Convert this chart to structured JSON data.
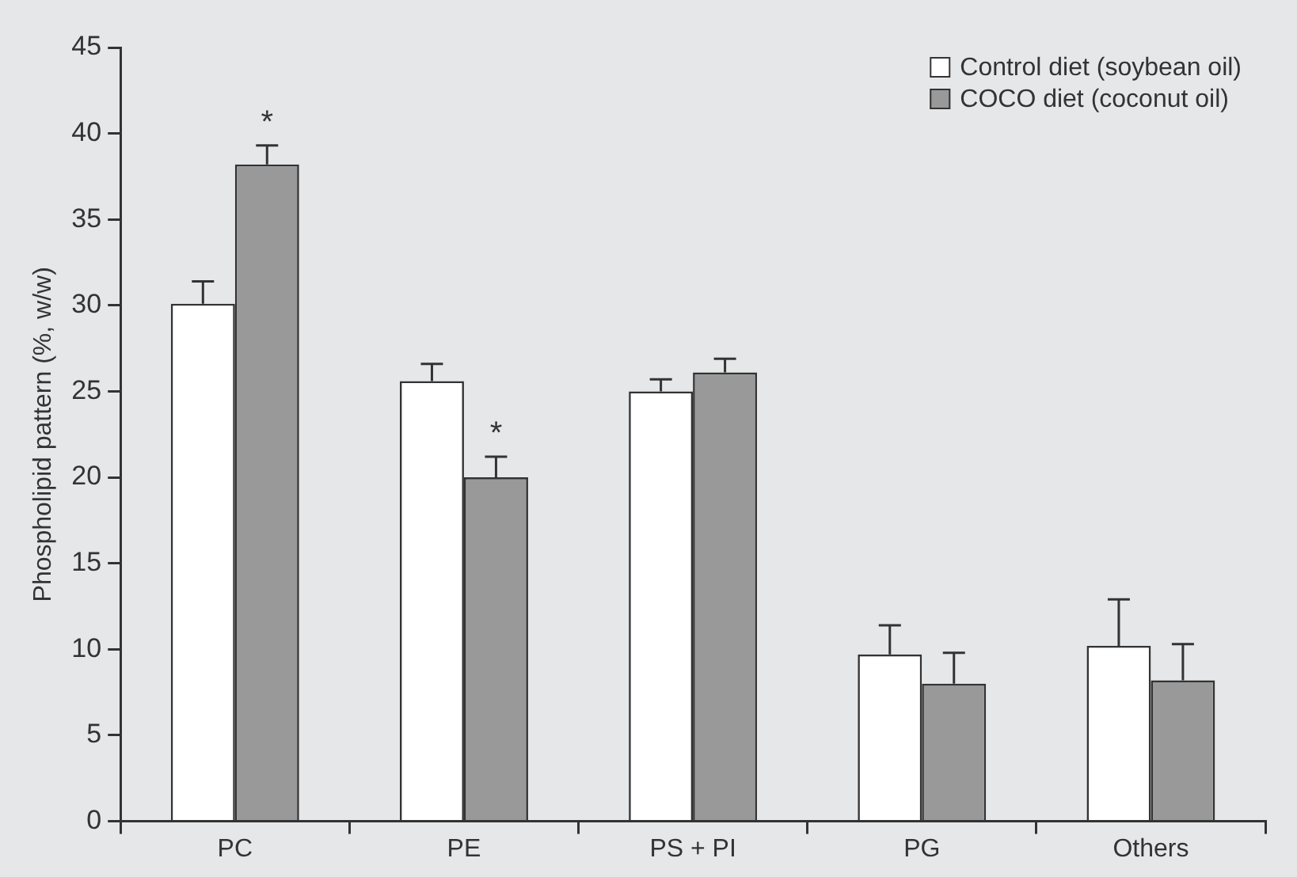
{
  "chart_data": {
    "type": "bar",
    "ylabel": "Phospholipid pattern (%, w/w)",
    "categories": [
      "PC",
      "PE",
      "PS + PI",
      "PG",
      "Others"
    ],
    "series": [
      {
        "name": "Control diet (soybean oil)",
        "color": "#ffffff",
        "values": [
          30.1,
          25.6,
          25.0,
          9.7,
          10.2
        ],
        "errors": [
          1.3,
          1.0,
          0.7,
          1.7,
          2.7
        ]
      },
      {
        "name": "COCO diet (coconut oil)",
        "color": "#999999",
        "values": [
          38.2,
          20.0,
          26.1,
          8.0,
          8.2
        ],
        "errors": [
          1.1,
          1.2,
          0.8,
          1.8,
          2.1
        ]
      }
    ],
    "ylim": [
      0,
      45
    ],
    "yticks": [
      0,
      5,
      10,
      15,
      20,
      25,
      30,
      35,
      40,
      45
    ],
    "grid": false,
    "legend": "top right",
    "annotations": [
      {
        "text": "*",
        "x": "PC",
        "y": 38.2
      },
      {
        "text": "*",
        "x": "PE",
        "y": 20.0
      }
    ]
  }
}
